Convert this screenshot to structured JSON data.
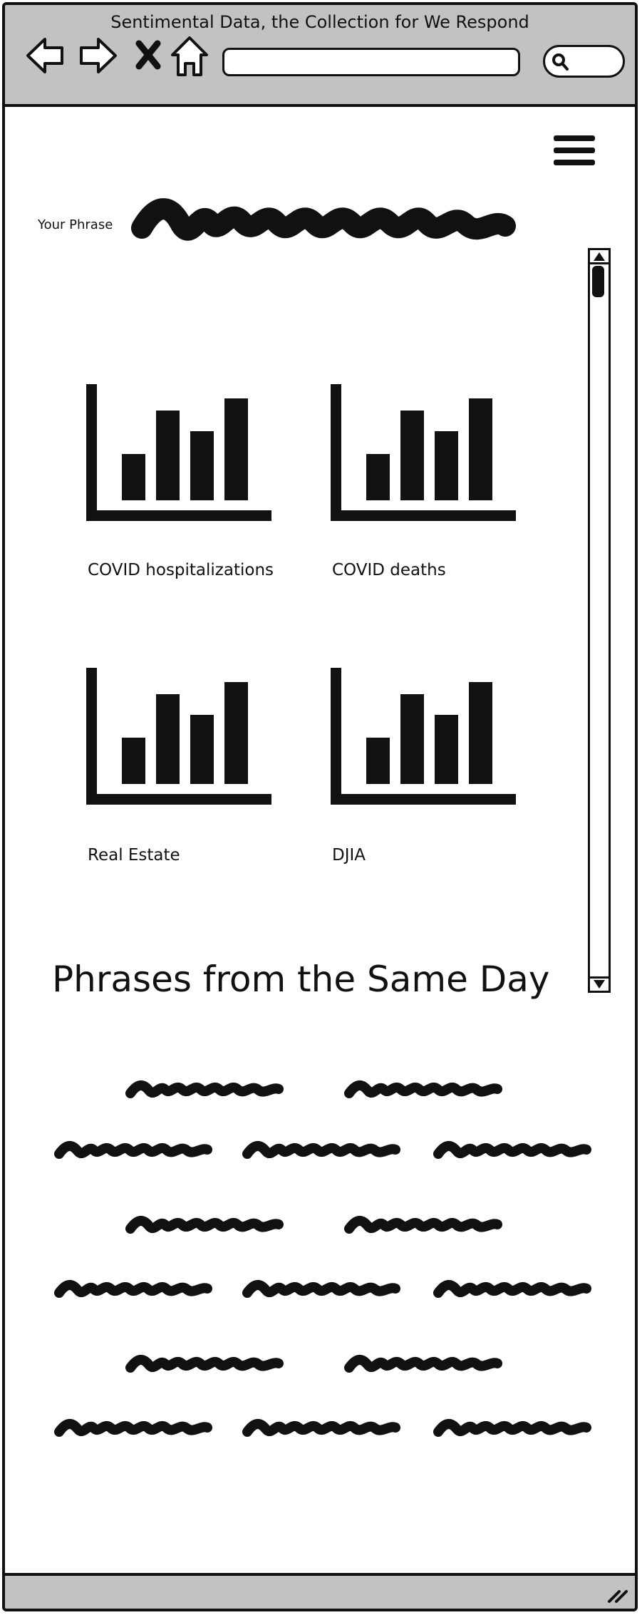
{
  "window": {
    "title": "Sentimental Data, the Collection for We Respond"
  },
  "browser": {
    "address_value": "",
    "search_value": "",
    "icons": [
      "back-arrow-icon",
      "forward-arrow-icon",
      "close-icon",
      "home-icon",
      "search-icon"
    ]
  },
  "menu": {
    "icon": "hamburger-menu-icon"
  },
  "phrase": {
    "label": "Your Phrase",
    "value_redacted": true
  },
  "charts": [
    {
      "label": "COVID hospitalizations"
    },
    {
      "label": "COVID deaths"
    },
    {
      "label": "Real Estate"
    },
    {
      "label": "DJIA"
    }
  ],
  "same_day": {
    "title": "Phrases from the Same Day",
    "rows": [
      2,
      3,
      2,
      3,
      2,
      3
    ]
  }
}
